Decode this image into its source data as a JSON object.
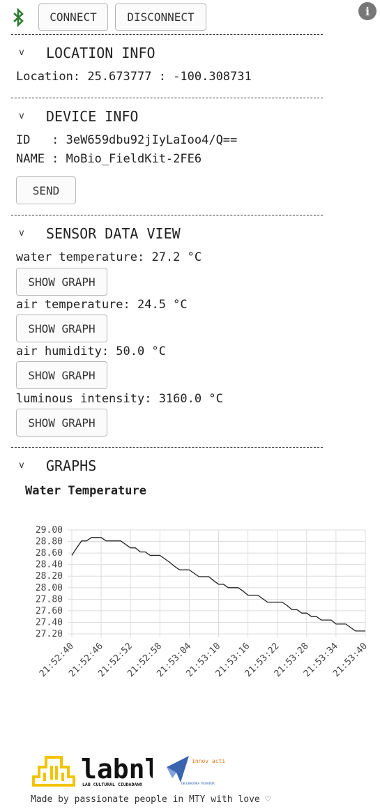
{
  "toolbar": {
    "bluetooth_icon": "bluetooth-icon",
    "connect_label": "CONNECT",
    "disconnect_label": "DISCONNECT",
    "info_icon": "info-icon",
    "info_glyph": "i"
  },
  "location": {
    "title": "LOCATION INFO",
    "text": "Location: 25.673777 : -100.308731"
  },
  "device": {
    "title": "DEVICE INFO",
    "id_line": "ID   : 3eW659dbu92jIyLaIoo4/Q==",
    "name_line": "NAME : MoBio_FieldKit-2FE6",
    "send_label": "SEND"
  },
  "sensors": {
    "title": "SENSOR DATA VIEW",
    "items": [
      {
        "label": "water temperature: 27.2 °C",
        "button": "SHOW GRAPH"
      },
      {
        "label": "air temperature: 24.5 °C",
        "button": "SHOW GRAPH"
      },
      {
        "label": "air humidity: 50.0 °C",
        "button": "SHOW GRAPH"
      },
      {
        "label": "luminous intensity: 3160.0 °C",
        "button": "SHOW GRAPH"
      }
    ]
  },
  "graphs": {
    "title": "GRAPHS",
    "chart_title": "Water Temperature"
  },
  "chevron": "v",
  "footer": {
    "labnl_text": "labnl",
    "labnl_sub": "LAB CULTURAL CIUDADANO",
    "gym_text": "innov action gym",
    "gym_sub": "INCUBADORA MIRADOR",
    "tagline": "Made by passionate people in MTY with love ♡"
  },
  "colors": {
    "bluetooth": "#2e7d32",
    "divider": "#333333",
    "line": "#222222",
    "grid": "#dddddd",
    "labnl": "#f2c300",
    "gym_blue": "#3a63b0",
    "gym_orange": "#e07a1f"
  },
  "chart_data": {
    "type": "line",
    "title": "Water Temperature",
    "xlabel": "",
    "ylabel": "",
    "ylim": [
      27.2,
      29.0
    ],
    "yticks": [
      "29.00",
      "28.80",
      "28.60",
      "28.40",
      "28.20",
      "28.00",
      "27.80",
      "27.60",
      "27.40",
      "27.20"
    ],
    "xticks": [
      "21:52:40",
      "21:52:46",
      "21:52:52",
      "21:52:58",
      "21:53:04",
      "21:53:10",
      "21:53:16",
      "21:53:22",
      "21:53:28",
      "21:53:34",
      "21:53:40"
    ],
    "x": [
      "21:52:40",
      "21:52:41",
      "21:52:42",
      "21:52:43",
      "21:52:44",
      "21:52:45",
      "21:52:46",
      "21:52:47",
      "21:52:48",
      "21:52:49",
      "21:52:50",
      "21:52:51",
      "21:52:52",
      "21:52:53",
      "21:52:54",
      "21:52:55",
      "21:52:56",
      "21:52:57",
      "21:52:58",
      "21:52:59",
      "21:53:00",
      "21:53:01",
      "21:53:02",
      "21:53:03",
      "21:53:04",
      "21:53:05",
      "21:53:06",
      "21:53:07",
      "21:53:08",
      "21:53:09",
      "21:53:10",
      "21:53:11",
      "21:53:12",
      "21:53:13",
      "21:53:14",
      "21:53:15",
      "21:53:16",
      "21:53:17",
      "21:53:18",
      "21:53:19",
      "21:53:20",
      "21:53:21",
      "21:53:22",
      "21:53:23",
      "21:53:24",
      "21:53:25",
      "21:53:26",
      "21:53:27",
      "21:53:28",
      "21:53:29",
      "21:53:30",
      "21:53:31",
      "21:53:32",
      "21:53:33",
      "21:53:34",
      "21:53:35",
      "21:53:36",
      "21:53:37",
      "21:53:38",
      "21:53:39",
      "21:53:40"
    ],
    "values": [
      28.56,
      28.69,
      28.81,
      28.81,
      28.87,
      28.87,
      28.87,
      28.81,
      28.81,
      28.81,
      28.81,
      28.75,
      28.69,
      28.69,
      28.62,
      28.62,
      28.56,
      28.56,
      28.56,
      28.5,
      28.44,
      28.37,
      28.31,
      28.31,
      28.31,
      28.25,
      28.19,
      28.19,
      28.19,
      28.12,
      28.06,
      28.06,
      28.0,
      28.0,
      28.0,
      27.94,
      27.87,
      27.87,
      27.87,
      27.81,
      27.75,
      27.75,
      27.75,
      27.75,
      27.69,
      27.62,
      27.62,
      27.56,
      27.56,
      27.5,
      27.5,
      27.44,
      27.44,
      27.44,
      27.37,
      27.37,
      27.37,
      27.31,
      27.25,
      27.25,
      27.25
    ]
  }
}
